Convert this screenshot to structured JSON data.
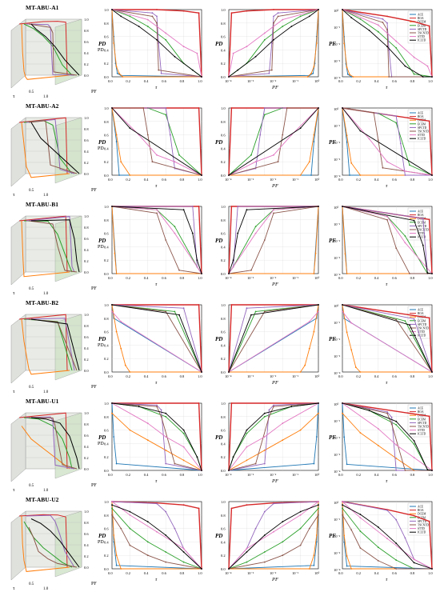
{
  "figure": {
    "legend_entries": [
      "ACE",
      "ROA",
      "DCEM",
      "ECEM",
      "SPCTD",
      "TSCNTD",
      "STTD",
      "ICLTD"
    ],
    "series_colors": {
      "ACE": "#1f77b4",
      "ROA": "#d62728",
      "DCEM": "#ff7f0e",
      "ECEM": "#2ca02c",
      "SPCTD": "#9467bd",
      "TSCNTD": "#8c564b",
      "STTD": "#e377c2",
      "ICLTD": "#000000"
    },
    "col_axis_labels": [
      {
        "x": "τ",
        "y": "PD"
      },
      {
        "x": "PF",
        "y": "PD"
      },
      {
        "x": "τ",
        "y": "PF"
      }
    ],
    "tau_ticks": [
      "0.0",
      "0.2",
      "0.4",
      "0.6",
      "0.8",
      "1.0"
    ],
    "pd_ticks": [
      "0.0",
      "0.2",
      "0.4",
      "0.6",
      "0.8",
      "1.0"
    ],
    "pf_ticks": [
      "10⁻⁴",
      "10⁻³",
      "10⁻²",
      "10⁻¹",
      "10⁰"
    ],
    "pf_log_ticks": [
      "10⁰",
      "10⁻¹",
      "10⁻²",
      "10⁻³",
      "10⁻⁴"
    ],
    "cube_labels": {
      "tau": "τ",
      "pf": "PF",
      "pd": "PD",
      "half": "0.5",
      "one": "1.0",
      "zero": "0"
    }
  },
  "chart_data": [
    {
      "dataset": "MT-ABU-A1",
      "type": "line",
      "xlabel": "τ",
      "ylabel": "PD",
      "xlim": [
        0,
        1
      ],
      "ylim": [
        0,
        1
      ],
      "series": [
        {
          "name": "ACE",
          "x": [
            0,
            0.02,
            0.04,
            0.06,
            0.1,
            1
          ],
          "y": [
            1,
            0.6,
            0.2,
            0.05,
            0.02,
            0
          ]
        },
        {
          "name": "ROA",
          "x": [
            0,
            0.5,
            0.8,
            0.97,
            1
          ],
          "y": [
            1,
            1,
            0.98,
            0.95,
            0
          ]
        },
        {
          "name": "DCEM",
          "x": [
            0,
            0.02,
            0.05,
            0.08,
            0.12,
            1
          ],
          "y": [
            1,
            0.5,
            0.15,
            0.05,
            0,
            0
          ]
        },
        {
          "name": "ECEM",
          "x": [
            0,
            0.2,
            0.4,
            0.6,
            0.8,
            1
          ],
          "y": [
            1,
            0.9,
            0.75,
            0.55,
            0.2,
            0
          ]
        },
        {
          "name": "SPCTD",
          "x": [
            0,
            0.45,
            0.5,
            0.52,
            0.55,
            1
          ],
          "y": [
            1,
            0.95,
            0.9,
            0.5,
            0.05,
            0
          ]
        },
        {
          "name": "TSCNTD",
          "x": [
            0,
            0.45,
            0.5,
            0.52,
            1
          ],
          "y": [
            1,
            0.9,
            0.8,
            0.1,
            0
          ]
        },
        {
          "name": "STTD",
          "x": [
            0,
            0.4,
            0.6,
            0.8,
            0.95,
            1
          ],
          "y": [
            1,
            0.85,
            0.65,
            0.45,
            0.35,
            0
          ]
        },
        {
          "name": "ICLTD",
          "x": [
            0,
            0.1,
            0.3,
            0.5,
            0.7,
            0.9,
            1
          ],
          "y": [
            1,
            0.9,
            0.75,
            0.55,
            0.3,
            0.1,
            0
          ]
        }
      ]
    },
    {
      "dataset": "MT-ABU-A2",
      "type": "line",
      "xlabel": "τ",
      "ylabel": "PD",
      "xlim": [
        0,
        1
      ],
      "ylim": [
        0,
        1
      ],
      "series": [
        {
          "name": "ACE",
          "x": [
            0,
            0.05,
            0.08,
            1
          ],
          "y": [
            1,
            0.5,
            0,
            0
          ]
        },
        {
          "name": "ROA",
          "x": [
            0,
            0.97,
            1
          ],
          "y": [
            1,
            1,
            0
          ]
        },
        {
          "name": "DCEM",
          "x": [
            0,
            0.05,
            0.1,
            0.2,
            1
          ],
          "y": [
            1,
            0.6,
            0.2,
            0,
            0
          ]
        },
        {
          "name": "ECEM",
          "x": [
            0,
            0.4,
            0.6,
            0.75,
            1
          ],
          "y": [
            1,
            1,
            0.9,
            0.3,
            0
          ]
        },
        {
          "name": "SPCTD",
          "x": [
            0,
            0.6,
            0.65,
            0.7,
            1
          ],
          "y": [
            1,
            1,
            0.6,
            0.1,
            0
          ]
        },
        {
          "name": "TSCNTD",
          "x": [
            0,
            0.35,
            0.4,
            0.45,
            1
          ],
          "y": [
            1,
            1,
            0.6,
            0.2,
            0
          ]
        },
        {
          "name": "STTD",
          "x": [
            0,
            0.3,
            0.5,
            0.7,
            1
          ],
          "y": [
            1,
            0.6,
            0.3,
            0.2,
            0
          ]
        },
        {
          "name": "ICLTD",
          "x": [
            0,
            0.2,
            1
          ],
          "y": [
            1,
            0.7,
            0
          ]
        }
      ]
    },
    {
      "dataset": "MT-ABU-B1",
      "type": "line",
      "xlabel": "τ",
      "ylabel": "PD",
      "xlim": [
        0,
        1
      ],
      "ylim": [
        0,
        1
      ],
      "series": [
        {
          "name": "ACE",
          "x": [
            0,
            0.05,
            1
          ],
          "y": [
            1,
            0,
            0
          ]
        },
        {
          "name": "ROA",
          "x": [
            0,
            0.97,
            1
          ],
          "y": [
            1,
            1,
            0
          ]
        },
        {
          "name": "DCEM",
          "x": [
            0,
            0.03,
            0.05,
            1
          ],
          "y": [
            1,
            0.3,
            0,
            0
          ]
        },
        {
          "name": "ECEM",
          "x": [
            0,
            0.5,
            0.7,
            0.95,
            1
          ],
          "y": [
            1,
            0.95,
            0.7,
            0.1,
            0
          ]
        },
        {
          "name": "SPCTD",
          "x": [
            0,
            0.9,
            0.95,
            1
          ],
          "y": [
            1,
            1,
            0.1,
            0
          ]
        },
        {
          "name": "TSCNTD",
          "x": [
            0,
            0.5,
            0.6,
            0.75,
            1
          ],
          "y": [
            1,
            0.9,
            0.5,
            0.05,
            0
          ]
        },
        {
          "name": "STTD",
          "x": [
            0,
            0.5,
            0.7,
            1
          ],
          "y": [
            1,
            0.95,
            0.6,
            0
          ]
        },
        {
          "name": "ICLTD",
          "x": [
            0,
            0.8,
            0.9,
            0.95,
            1
          ],
          "y": [
            1,
            0.95,
            0.6,
            0.2,
            0
          ]
        }
      ]
    },
    {
      "dataset": "MT-ABU-B2",
      "type": "line",
      "xlabel": "τ",
      "ylabel": "PD",
      "xlim": [
        0,
        1
      ],
      "ylim": [
        0,
        1
      ],
      "series": [
        {
          "name": "ACE",
          "x": [
            0,
            0.02,
            1
          ],
          "y": [
            1,
            0.8,
            0
          ]
        },
        {
          "name": "ROA",
          "x": [
            0,
            0.97,
            1
          ],
          "y": [
            1,
            1,
            0
          ]
        },
        {
          "name": "DCEM",
          "x": [
            0,
            0.05,
            0.1,
            0.15,
            0.2,
            1
          ],
          "y": [
            1,
            0.6,
            0.35,
            0.1,
            0,
            0
          ]
        },
        {
          "name": "ECEM",
          "x": [
            0,
            0.7,
            1
          ],
          "y": [
            1,
            0.9,
            0
          ]
        },
        {
          "name": "SPCTD",
          "x": [
            0,
            0.8,
            1
          ],
          "y": [
            1,
            0.95,
            0
          ]
        },
        {
          "name": "TSCNTD",
          "x": [
            0,
            0.6,
            1
          ],
          "y": [
            1,
            0.9,
            0
          ]
        },
        {
          "name": "STTD",
          "x": [
            0,
            0.1,
            1
          ],
          "y": [
            0.9,
            0.75,
            0
          ]
        },
        {
          "name": "ICLTD",
          "x": [
            0,
            0.75,
            1
          ],
          "y": [
            1,
            0.85,
            0
          ]
        }
      ]
    },
    {
      "dataset": "MT-ABU-U1",
      "type": "line",
      "xlabel": "τ",
      "ylabel": "PD",
      "xlim": [
        0,
        1
      ],
      "ylim": [
        0,
        1
      ],
      "series": [
        {
          "name": "ACE",
          "x": [
            0,
            0.02,
            0.05,
            1
          ],
          "y": [
            1,
            0.5,
            0.1,
            0
          ]
        },
        {
          "name": "ROA",
          "x": [
            0,
            0.97,
            1
          ],
          "y": [
            1,
            1,
            0
          ]
        },
        {
          "name": "DCEM",
          "x": [
            0,
            0.2,
            0.4,
            0.6,
            0.8,
            1
          ],
          "y": [
            0.85,
            0.6,
            0.45,
            0.3,
            0.15,
            0
          ]
        },
        {
          "name": "ECEM",
          "x": [
            0,
            0.3,
            0.6,
            0.8,
            0.95,
            1
          ],
          "y": [
            1,
            0.95,
            0.8,
            0.55,
            0.2,
            0
          ]
        },
        {
          "name": "SPCTD",
          "x": [
            0,
            0.5,
            0.55,
            0.6,
            1
          ],
          "y": [
            1,
            0.97,
            0.9,
            0.1,
            0
          ]
        },
        {
          "name": "TSCNTD",
          "x": [
            0,
            0.5,
            0.55,
            0.7,
            1
          ],
          "y": [
            1,
            0.95,
            0.8,
            0.1,
            0
          ]
        },
        {
          "name": "STTD",
          "x": [
            0,
            0.4,
            0.6,
            0.8,
            1
          ],
          "y": [
            1,
            0.7,
            0.5,
            0.35,
            0
          ]
        },
        {
          "name": "ICLTD",
          "x": [
            0,
            0.3,
            0.6,
            0.8,
            0.95,
            1
          ],
          "y": [
            1,
            0.95,
            0.85,
            0.6,
            0.2,
            0
          ]
        }
      ]
    },
    {
      "dataset": "MT-ABU-U2",
      "type": "line",
      "xlabel": "τ",
      "ylabel": "PD",
      "xlim": [
        0,
        1
      ],
      "ylim": [
        0,
        1
      ],
      "series": [
        {
          "name": "ACE",
          "x": [
            0,
            0.02,
            0.05,
            1
          ],
          "y": [
            1,
            0.4,
            0.05,
            0
          ]
        },
        {
          "name": "ROA",
          "x": [
            0,
            0.5,
            0.8,
            0.97,
            1
          ],
          "y": [
            1,
            0.98,
            0.95,
            0.9,
            0
          ]
        },
        {
          "name": "DCEM",
          "x": [
            0,
            0.02,
            0.05,
            0.1,
            1
          ],
          "y": [
            1,
            0.5,
            0.2,
            0,
            0
          ]
        },
        {
          "name": "ECEM",
          "x": [
            0,
            0.2,
            0.4,
            0.6,
            0.8,
            1
          ],
          "y": [
            0.9,
            0.6,
            0.4,
            0.25,
            0.1,
            0
          ]
        },
        {
          "name": "SPCTD",
          "x": [
            0,
            0.5,
            0.6,
            0.7,
            0.8,
            1
          ],
          "y": [
            1,
            0.97,
            0.85,
            0.6,
            0.3,
            0
          ]
        },
        {
          "name": "TSCNTD",
          "x": [
            0,
            0.1,
            0.2,
            0.4,
            0.6,
            1
          ],
          "y": [
            0.8,
            0.6,
            0.35,
            0.2,
            0.1,
            0
          ]
        },
        {
          "name": "STTD",
          "x": [
            0,
            0.2,
            0.5,
            0.8,
            1
          ],
          "y": [
            1,
            0.8,
            0.55,
            0.3,
            0
          ]
        },
        {
          "name": "ICLTD",
          "x": [
            0,
            0.2,
            0.4,
            0.6,
            0.8,
            1
          ],
          "y": [
            0.95,
            0.85,
            0.7,
            0.5,
            0.25,
            0
          ]
        }
      ]
    }
  ]
}
